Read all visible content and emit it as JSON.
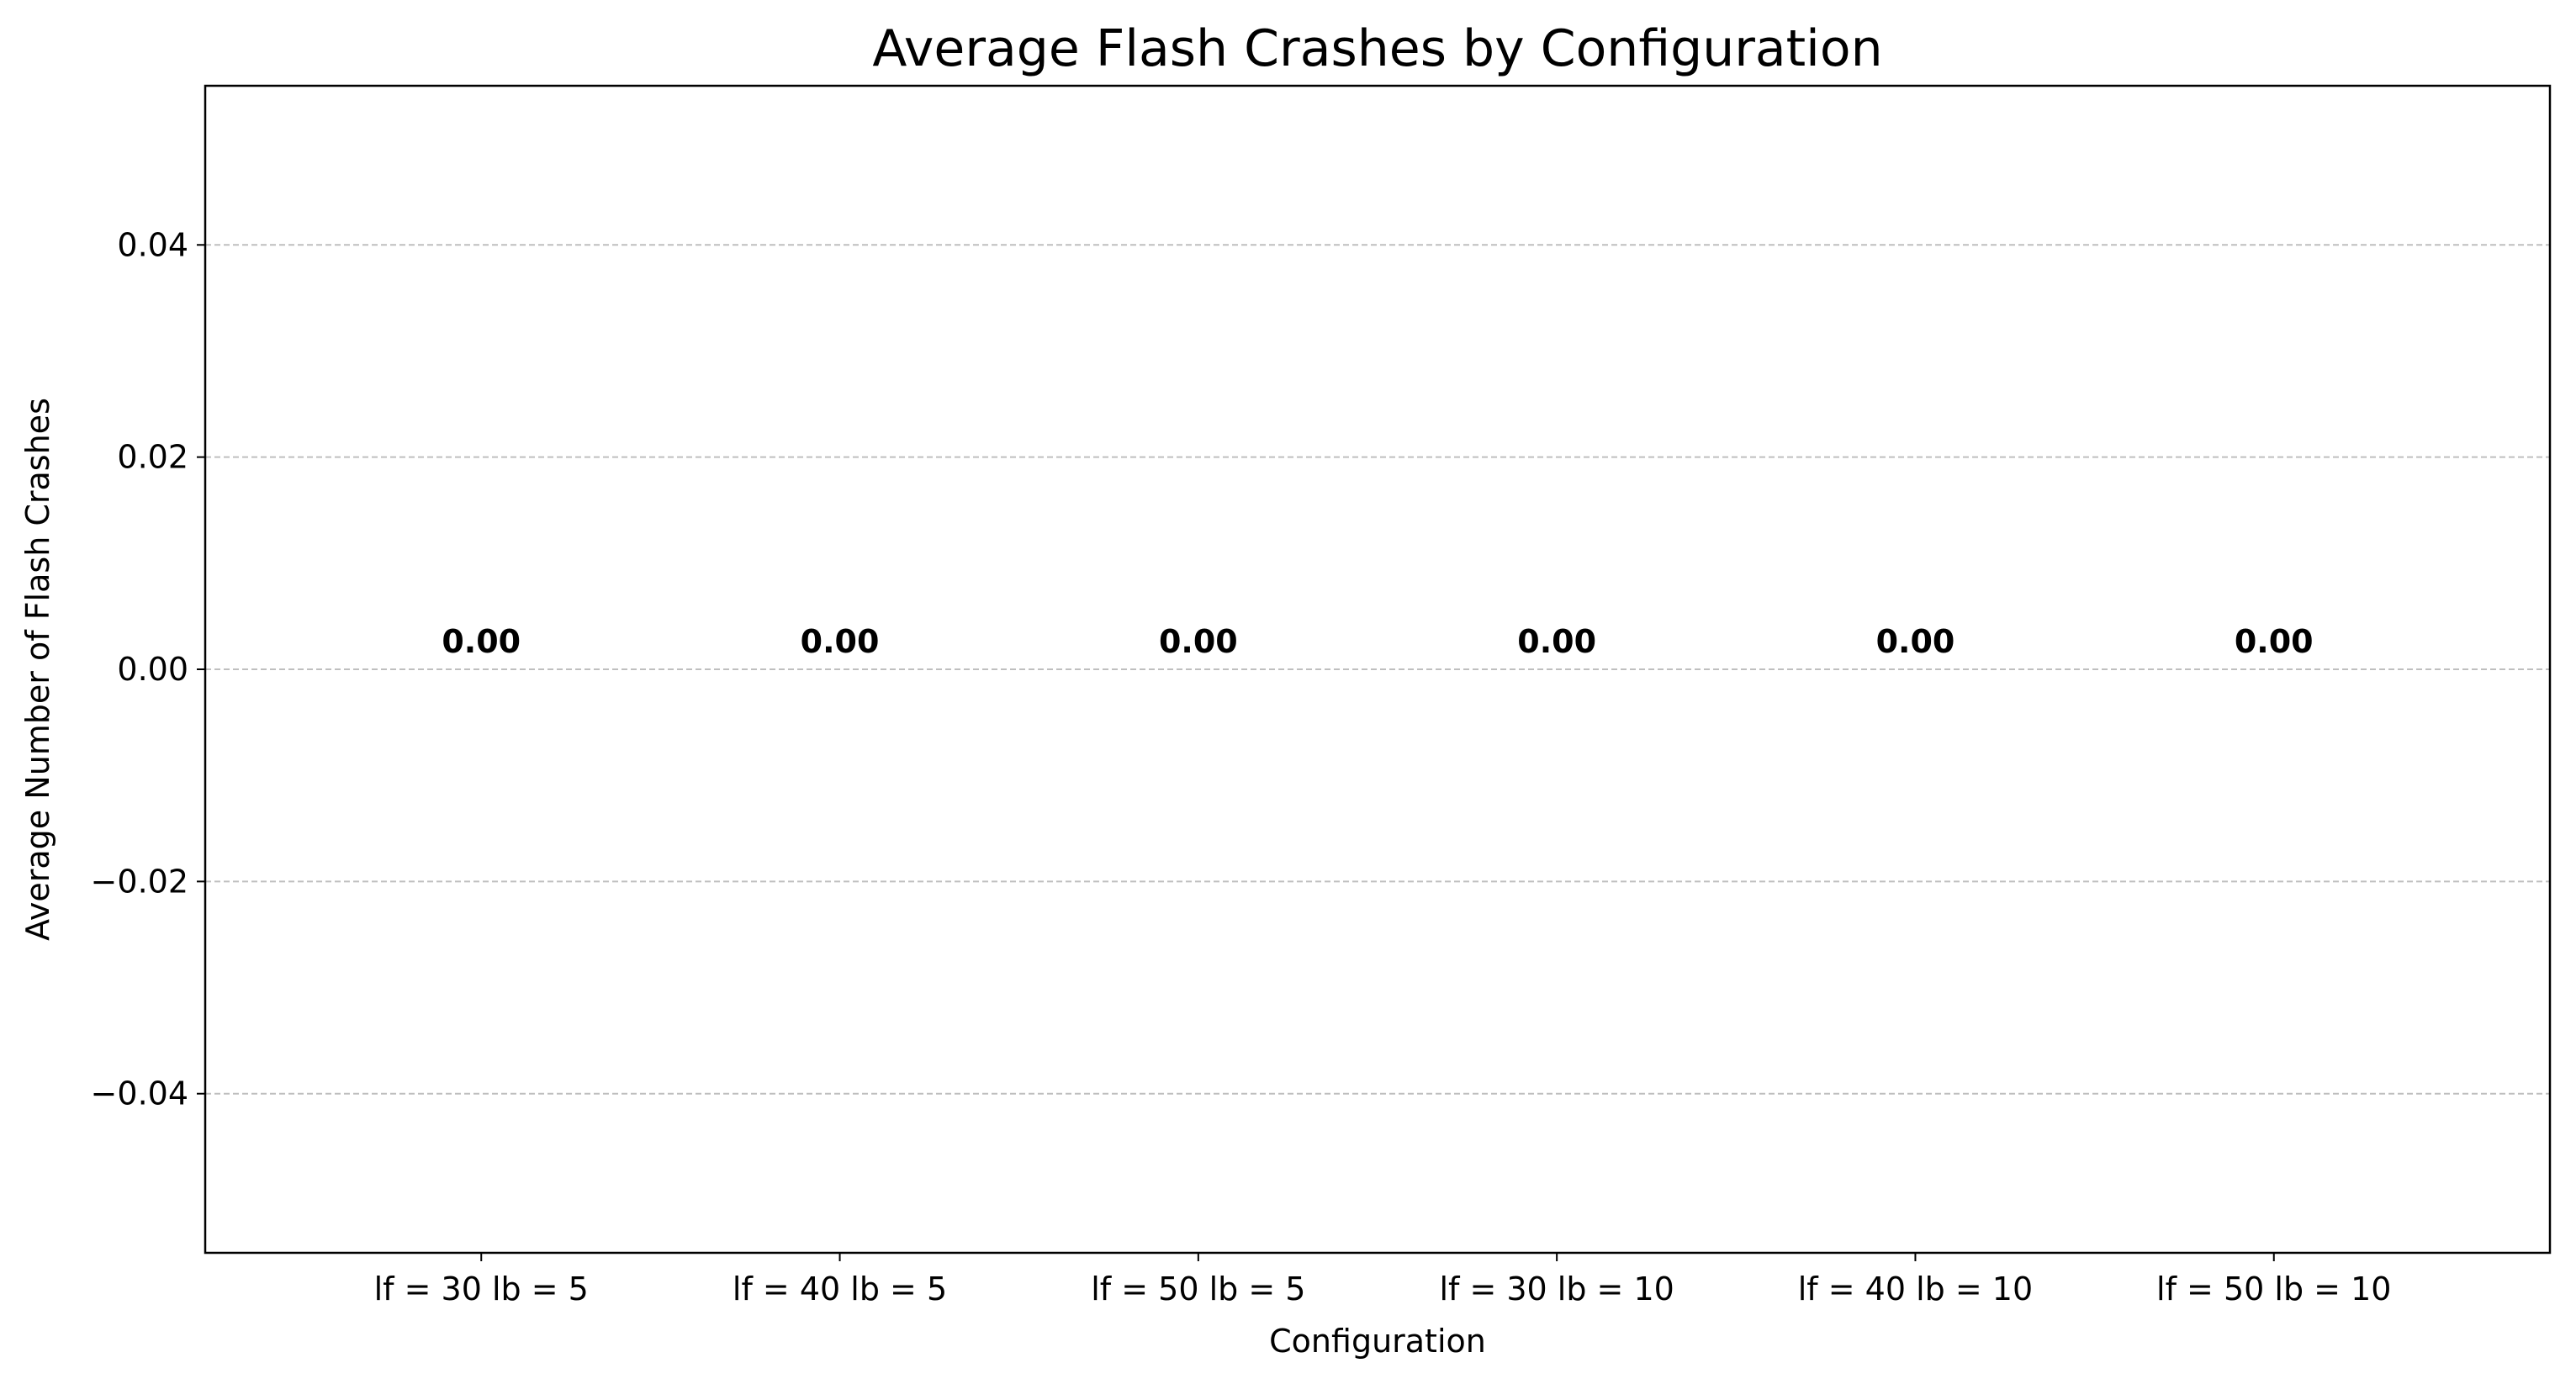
{
  "chart_data": {
    "type": "bar",
    "title": "Average Flash Crashes by Configuration",
    "xlabel": "Configuration",
    "ylabel": "Average Number of Flash Crashes",
    "categories": [
      "lf = 30 lb = 5",
      "lf = 40 lb = 5",
      "lf = 50 lb = 5",
      "lf = 30 lb = 10",
      "lf = 40 lb = 10",
      "lf = 50 lb = 10"
    ],
    "values": [
      0,
      0,
      0,
      0,
      0,
      0
    ],
    "data_labels": [
      "0.00",
      "0.00",
      "0.00",
      "0.00",
      "0.00",
      "0.00"
    ],
    "ylim": [
      -0.055,
      0.055
    ],
    "yticks": [
      -0.04,
      -0.02,
      0.0,
      0.02,
      0.04
    ],
    "ytick_labels": [
      "−0.04",
      "−0.02",
      "0.00",
      "0.02",
      "0.04"
    ],
    "grid": "y-dashed",
    "colors": {
      "axis": "#000000",
      "grid": "#b0b0b0",
      "bar": "#1f77b4",
      "background": "#ffffff"
    }
  }
}
